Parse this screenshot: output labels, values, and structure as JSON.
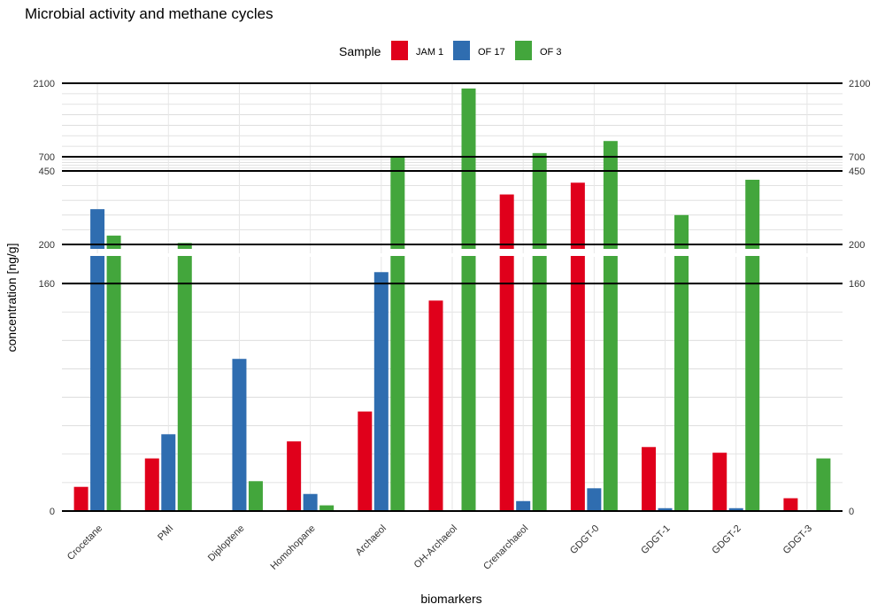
{
  "chart_data": {
    "type": "bar",
    "title": "Microbial activity and methane cycles",
    "xlabel": "biomarkers",
    "ylabel": "concentration [ng/g]",
    "legend": {
      "title": "Sample",
      "position": "top"
    },
    "categories": [
      "Crocetane",
      "PMI",
      "Diploptene",
      "Homohopane",
      "Archaeol",
      "OH-Archaeol",
      "Crenarchaeol",
      "GDGT-0",
      "GDGT-1",
      "GDGT-2",
      "GDGT-3"
    ],
    "series": [
      {
        "name": "JAM 1",
        "color": "#e0001b",
        "values": [
          17,
          37,
          0,
          49,
          70,
          148,
          370,
          410,
          45,
          41,
          9
        ]
      },
      {
        "name": "OF 17",
        "color": "#2f6db0",
        "values": [
          320,
          54,
          107,
          12,
          168,
          0,
          7,
          16,
          2,
          2,
          0
        ]
      },
      {
        "name": "OF 3",
        "color": "#43a63c",
        "values": [
          230,
          205,
          21,
          4,
          710,
          2000,
          770,
          1000,
          300,
          420,
          37
        ]
      }
    ],
    "y_axis": {
      "broken": true,
      "lower_segment": {
        "range": [
          0,
          180
        ],
        "tick_labels": [
          "0",
          "160"
        ]
      },
      "upper_segment": {
        "range": [
          180,
          2100
        ],
        "tick_labels": [
          "200",
          "450",
          "700",
          "2100"
        ]
      }
    },
    "grid": true
  }
}
